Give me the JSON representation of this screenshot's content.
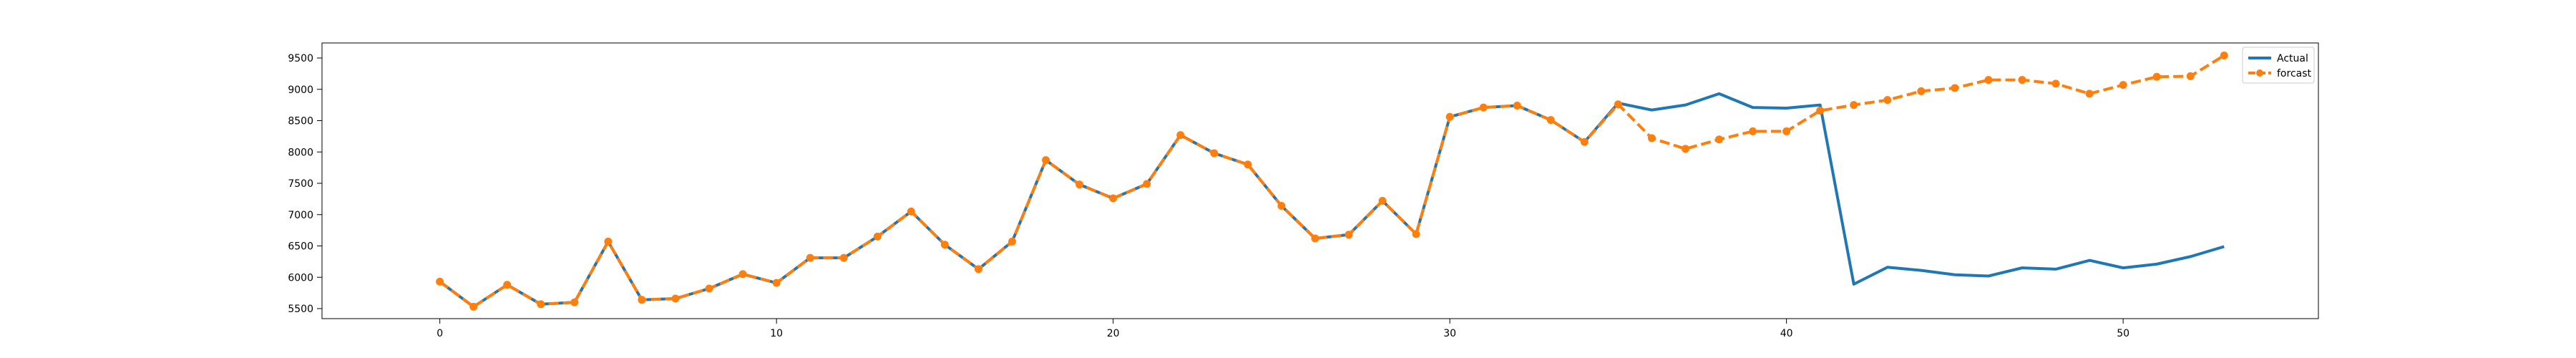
{
  "chart_data": {
    "type": "line",
    "title": "",
    "xlabel": "",
    "ylabel": "",
    "xlim": [
      -3.5,
      55.8
    ],
    "ylim": [
      5340,
      9740
    ],
    "x_ticks": [
      0,
      10,
      20,
      30,
      40,
      50
    ],
    "y_ticks": [
      5500,
      6000,
      6500,
      7000,
      7500,
      8000,
      8500,
      9000,
      9500
    ],
    "grid": false,
    "legend_position": "top-right",
    "series": [
      {
        "name": "Actual",
        "color": "#1f77b4",
        "style": "solid",
        "marker": "none",
        "x": [
          0,
          1,
          2,
          3,
          4,
          5,
          6,
          7,
          8,
          9,
          10,
          11,
          12,
          13,
          14,
          15,
          16,
          17,
          18,
          19,
          20,
          21,
          22,
          23,
          24,
          25,
          26,
          27,
          28,
          29,
          30,
          31,
          32,
          33,
          34,
          35,
          36,
          37,
          38,
          39,
          40,
          41,
          42,
          43,
          44,
          45,
          46,
          47,
          48,
          49,
          50,
          51,
          52,
          53
        ],
        "values": [
          5930,
          5530,
          5880,
          5570,
          5600,
          6570,
          5640,
          5660,
          5820,
          6050,
          5910,
          6310,
          6310,
          6650,
          7050,
          6520,
          6130,
          6570,
          7870,
          7480,
          7260,
          7490,
          8270,
          7980,
          7800,
          7140,
          6620,
          6680,
          7220,
          6690,
          8560,
          8710,
          8740,
          8510,
          8160,
          8780,
          8670,
          8750,
          8930,
          8710,
          8700,
          8750,
          5890,
          6160,
          6110,
          6040,
          6020,
          6150,
          6130,
          6270,
          6150,
          6210,
          6330,
          6490
        ]
      },
      {
        "name": "forcast",
        "color": "#ff7f0e",
        "style": "dashed",
        "marker": "circle",
        "x": [
          0,
          1,
          2,
          3,
          4,
          5,
          6,
          7,
          8,
          9,
          10,
          11,
          12,
          13,
          14,
          15,
          16,
          17,
          18,
          19,
          20,
          21,
          22,
          23,
          24,
          25,
          26,
          27,
          28,
          29,
          30,
          31,
          32,
          33,
          34,
          35,
          36,
          37,
          38,
          39,
          40,
          41,
          42,
          43,
          44,
          45,
          46,
          47,
          48,
          49,
          50,
          51,
          52,
          53
        ],
        "values": [
          5930,
          5530,
          5880,
          5570,
          5600,
          6570,
          5640,
          5660,
          5820,
          6050,
          5910,
          6310,
          6310,
          6650,
          7050,
          6520,
          6130,
          6570,
          7870,
          7480,
          7260,
          7490,
          8270,
          7980,
          7800,
          7140,
          6620,
          6680,
          7220,
          6690,
          8560,
          8710,
          8740,
          8510,
          8160,
          8760,
          8220,
          8050,
          8200,
          8330,
          8330,
          8660,
          8750,
          8830,
          8970,
          9020,
          9150,
          9150,
          9090,
          8930,
          9070,
          9200,
          9210,
          9540
        ]
      }
    ]
  }
}
